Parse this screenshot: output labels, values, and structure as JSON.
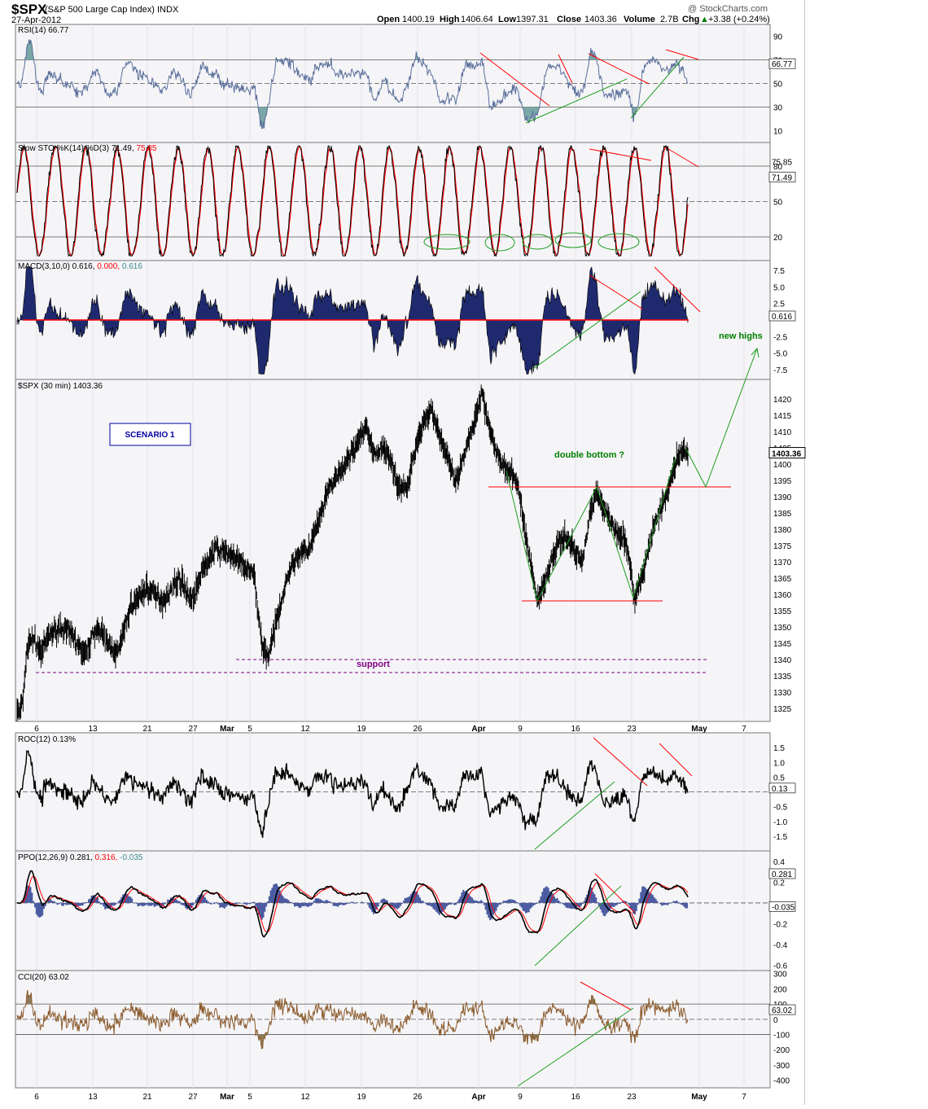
{
  "header": {
    "symbol": "$SPX",
    "name": "(S&P 500 Large Cap Index) INDX",
    "date": "27-Apr-2012",
    "watermark": "@ StockCharts.com",
    "quote": {
      "open_label": "Open",
      "open": "1400.19",
      "high_label": "High",
      "high": "1406.64",
      "low_label": "Low",
      "low": "1397.31",
      "close_label": "Close",
      "close": "1403.36",
      "volume_label": "Volume",
      "volume": "2.7B",
      "chg_label": "Chg",
      "chg": "+3.38 (+0.24%)",
      "chg_arrow": "▲"
    }
  },
  "x_axis": {
    "labels": [
      "6",
      "13",
      "21",
      "27",
      "Mar",
      "5",
      "12",
      "19",
      "26",
      "Apr",
      "9",
      "16",
      "23",
      "May",
      "7"
    ],
    "bold_labels": [
      "Mar",
      "Apr",
      "May"
    ]
  },
  "colors": {
    "panel_bg": "#f5f5f8",
    "rsi_line": "#5a6e9a",
    "rsi_fill": "#7aa6a6",
    "sto_k": "#000000",
    "sto_d": "#ff0000",
    "macd_fill": "#1f2a6e",
    "price": "#000000",
    "trend_red": "#ff0000",
    "trend_green": "#1e9e1e",
    "support": "#800080",
    "ppo_hist": "#4a5aa0",
    "cci_fill": "#8b7a5a",
    "cci_line": "#8b5a2b",
    "scenario": "#0000a0",
    "annotation_green": "#008000",
    "last_value_bg": "#ffffff"
  },
  "panels": {
    "rsi": {
      "title": "RSI(14) 66.77",
      "y_labels": [
        "90",
        "70",
        "50",
        "30",
        "10"
      ],
      "last_value": "66.77"
    },
    "sto": {
      "title_prefix": "Slow STO %K(14) %D(3) 71.49,",
      "title_d": "75.85",
      "y_labels": [
        "80",
        "50",
        "20"
      ],
      "last_value": "71.49",
      "last_value_d": "75.85"
    },
    "macd": {
      "title_prefix": "MACD(3,10,0) 0.616,",
      "title_signal": "0.000,",
      "title_hist": "0.616",
      "y_labels": [
        "7.5",
        "5.0",
        "2.5",
        "-2.5",
        "-5.0",
        "-7.5"
      ],
      "last_value": "0.616"
    },
    "price": {
      "title": "$SPX (30 min) 1403.36",
      "y_labels": [
        "1420",
        "1415",
        "1410",
        "1405",
        "1400",
        "1395",
        "1390",
        "1385",
        "1380",
        "1375",
        "1370",
        "1365",
        "1360",
        "1355",
        "1350",
        "1345",
        "1340",
        "1335",
        "1330",
        "1325"
      ],
      "last_value": "1403.36",
      "scenario": "SCENARIO 1",
      "double_bottom": "double bottom ?",
      "new_highs": "new highs",
      "support": "support"
    },
    "roc": {
      "title": "ROC(12) 0.13%",
      "y_labels": [
        "1.5",
        "1.0",
        "0.5",
        "-0.5",
        "-1.0",
        "-1.5"
      ],
      "last_value": "0.13"
    },
    "ppo": {
      "title_prefix": "PPO(12,26,9) 0.281,",
      "title_signal": "0.316,",
      "title_hist": "-0.035",
      "y_labels": [
        "0.4",
        "0.2",
        "-0.2",
        "-0.4",
        "-0.6"
      ],
      "last_value": "0.281",
      "last_hist": "-0.035"
    },
    "cci": {
      "title": "CCI(20) 63.02",
      "y_labels": [
        "300",
        "200",
        "100",
        "0",
        "-100",
        "-200",
        "-300",
        "-400"
      ],
      "last_value": "63.02"
    }
  },
  "chart_data": {
    "type": "line",
    "title": "$SPX (30 min) 1403.36",
    "interval": "30 min",
    "x_range": [
      "Feb 6 2012",
      "May 7 2012"
    ],
    "ylim": [
      1322,
      1425
    ],
    "key_points": [
      {
        "x": "Feb 1",
        "y": 1328
      },
      {
        "x": "Feb 3",
        "y": 1343
      },
      {
        "x": "Feb 10",
        "y": 1348
      },
      {
        "x": "Feb 14",
        "y": 1342
      },
      {
        "x": "Feb 21",
        "y": 1364
      },
      {
        "x": "Feb 28",
        "y": 1372
      },
      {
        "x": "Mar 1",
        "y": 1374
      },
      {
        "x": "Mar 6",
        "y": 1341
      },
      {
        "x": "Mar 9",
        "y": 1371
      },
      {
        "x": "Mar 13",
        "y": 1395
      },
      {
        "x": "Mar 16",
        "y": 1412
      },
      {
        "x": "Mar 20",
        "y": 1397
      },
      {
        "x": "Mar 26",
        "y": 1418
      },
      {
        "x": "Mar 30",
        "y": 1402
      },
      {
        "x": "Apr 2",
        "y": 1422
      },
      {
        "x": "Apr 5",
        "y": 1395
      },
      {
        "x": "Apr 10",
        "y": 1358
      },
      {
        "x": "Apr 16",
        "y": 1370
      },
      {
        "x": "Apr 17",
        "y": 1392
      },
      {
        "x": "Apr 23",
        "y": 1359
      },
      {
        "x": "Apr 26",
        "y": 1400
      },
      {
        "x": "Apr 27",
        "y": 1403.36
      }
    ],
    "annotations": {
      "support_levels": [
        1340,
        1336
      ],
      "double_bottom_neckline": 1393,
      "double_bottom_lows": 1358,
      "projection": [
        {
          "x": "Apr 27",
          "y": 1403
        },
        {
          "x": "Apr 30",
          "y": 1393
        },
        {
          "x": "May 3",
          "y": 1433
        }
      ]
    }
  }
}
